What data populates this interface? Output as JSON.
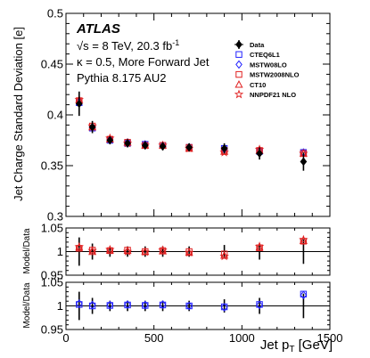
{
  "chart_data": {
    "type": "scatter",
    "x": [
      75,
      150,
      250,
      350,
      450,
      550,
      700,
      900,
      1100,
      1350
    ],
    "main": {
      "ylabel": "Jet Charge Standard Deviation [e]",
      "ylim": [
        0.3,
        0.5
      ],
      "yticks": [
        {
          "v": 0.3,
          "t": "0.3"
        },
        {
          "v": 0.35,
          "t": "0.35"
        },
        {
          "v": 0.4,
          "t": "0.4"
        },
        {
          "v": 0.45,
          "t": "0.45"
        },
        {
          "v": 0.5,
          "t": "0.5"
        }
      ],
      "data": {
        "name": "Data",
        "values": [
          0.411,
          0.388,
          0.375,
          0.372,
          0.37,
          0.369,
          0.368,
          0.367,
          0.362,
          0.354
        ],
        "errors": [
          0.012,
          0.006,
          0.004,
          0.004,
          0.004,
          0.004,
          0.004,
          0.005,
          0.006,
          0.009
        ]
      },
      "series": [
        {
          "name": "CTEQ6L1",
          "marker": "open-square",
          "color": "#2020ff",
          "values": [
            0.412,
            0.387,
            0.375,
            0.372,
            0.371,
            0.37,
            0.368,
            0.367,
            0.364,
            0.363
          ]
        },
        {
          "name": "MSTW08LO",
          "marker": "open-diamond",
          "color": "#2020ff",
          "values": [
            0.413,
            0.388,
            0.376,
            0.373,
            0.371,
            0.37,
            0.368,
            0.366,
            0.365,
            0.363
          ]
        },
        {
          "name": "MSTW2008NLO",
          "marker": "open-square",
          "color": "#e02020",
          "values": [
            0.414,
            0.389,
            0.376,
            0.373,
            0.37,
            0.37,
            0.368,
            0.365,
            0.365,
            0.362
          ]
        },
        {
          "name": "CT10",
          "marker": "open-triangle",
          "color": "#e02020",
          "values": [
            0.415,
            0.388,
            0.376,
            0.373,
            0.37,
            0.37,
            0.367,
            0.364,
            0.365,
            0.362
          ]
        },
        {
          "name": "NNPDF21 NLO",
          "marker": "star",
          "color": "#e02020",
          "values": [
            0.415,
            0.389,
            0.377,
            0.372,
            0.37,
            0.37,
            0.367,
            0.363,
            0.366,
            0.362
          ]
        }
      ]
    },
    "ratio1": {
      "ylabel": "Model/Data",
      "ylim": [
        0.95,
        1.05
      ],
      "yticks": [
        {
          "v": 0.95,
          "t": "0.95"
        },
        {
          "v": 1.0,
          "t": "1"
        },
        {
          "v": 1.05,
          "t": "1.05"
        }
      ],
      "data_errors": [
        0.03,
        0.017,
        0.011,
        0.011,
        0.011,
        0.011,
        0.011,
        0.014,
        0.017,
        0.026
      ],
      "series": [
        {
          "name": "MSTW2008NLO",
          "marker": "open-square",
          "color": "#e02020",
          "values": [
            1.007,
            1.003,
            1.002,
            1.003,
            1.0,
            1.002,
            1.0,
            0.995,
            1.008,
            1.022
          ]
        },
        {
          "name": "CT10",
          "marker": "open-triangle",
          "color": "#e02020",
          "values": [
            1.009,
            1.0,
            1.003,
            1.002,
            1.0,
            1.001,
            0.998,
            0.992,
            1.009,
            1.023
          ]
        },
        {
          "name": "NNPDF21 NLO",
          "marker": "star",
          "color": "#e02020",
          "values": [
            1.01,
            1.002,
            1.004,
            1.0,
            0.999,
            1.003,
            0.998,
            0.99,
            1.011,
            1.025
          ]
        }
      ]
    },
    "ratio2": {
      "ylabel": "Model/Data",
      "ylim": [
        0.95,
        1.05
      ],
      "yticks": [
        {
          "v": 0.95,
          "t": "0.95"
        },
        {
          "v": 1.0,
          "t": "1"
        },
        {
          "v": 1.05,
          "t": "1.05"
        }
      ],
      "data_errors": [
        0.03,
        0.017,
        0.011,
        0.011,
        0.011,
        0.011,
        0.011,
        0.014,
        0.017,
        0.026
      ],
      "series": [
        {
          "name": "CTEQ6L1",
          "marker": "open-square",
          "color": "#2020ff",
          "values": [
            1.003,
            1.0,
            1.001,
            1.002,
            1.001,
            1.002,
            1.0,
            0.998,
            1.003,
            1.025
          ]
        },
        {
          "name": "MSTW08LO",
          "marker": "open-diamond",
          "color": "#2020ff",
          "values": [
            1.005,
            1.002,
            1.002,
            1.003,
            1.002,
            1.003,
            1.0,
            0.997,
            1.002,
            1.023
          ]
        }
      ]
    },
    "xlabel_main": "Jet p",
    "xlabel_sub": "T",
    "xlabel_unit": " [GeV]",
    "xlim": [
      0,
      1500
    ],
    "xticks": [
      {
        "v": 0,
        "t": "0"
      },
      {
        "v": 500,
        "t": "500"
      },
      {
        "v": 1000,
        "t": "1000"
      },
      {
        "v": 1500,
        "t": "1500"
      }
    ]
  },
  "annotations": {
    "experiment": "ATLAS",
    "energy_prefix": "√s = 8 TeV, 20.3 fb",
    "energy_sup": "-1",
    "kappa": "κ = 0.5, More Forward Jet",
    "generator": "Pythia 8.175 AU2"
  },
  "colors": {
    "data": "#000000",
    "blue": "#2020ff",
    "red": "#e02020"
  }
}
